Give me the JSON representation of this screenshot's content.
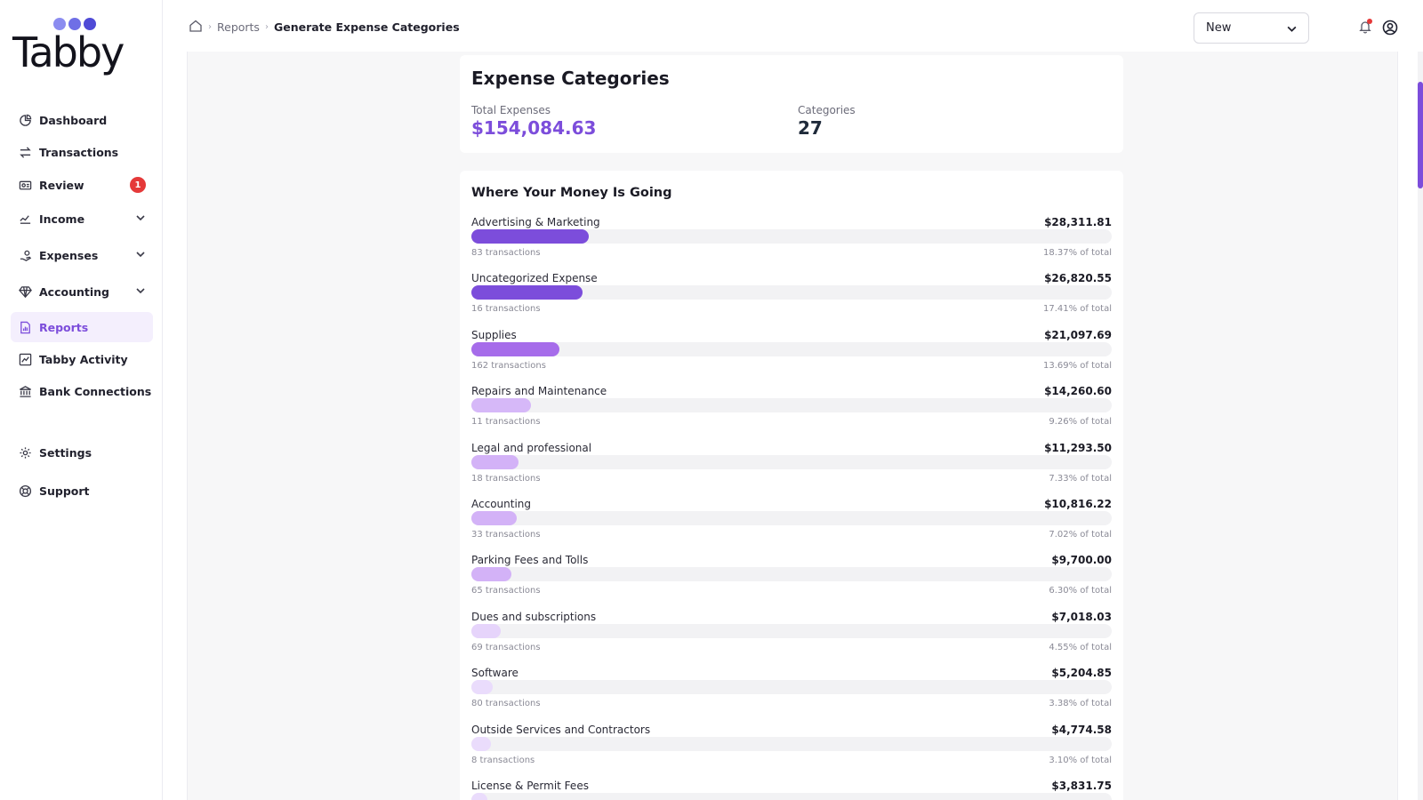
{
  "brand": {
    "name": "Tabby",
    "dot_colors": [
      "#8b8cf0",
      "#6f6fe6",
      "#4f4ad6"
    ]
  },
  "sidebar": {
    "items": [
      {
        "key": "dashboard",
        "label": "Dashboard",
        "icon": "dashboard-icon"
      },
      {
        "key": "transactions",
        "label": "Transactions",
        "icon": "transactions-icon"
      },
      {
        "key": "review",
        "label": "Review",
        "icon": "review-icon",
        "badge": "1"
      },
      {
        "key": "income",
        "label": "Income",
        "icon": "income-icon",
        "expandable": true
      },
      {
        "key": "expenses",
        "label": "Expenses",
        "icon": "expenses-icon",
        "expandable": true
      },
      {
        "key": "accounting",
        "label": "Accounting",
        "icon": "accounting-icon",
        "expandable": true
      },
      {
        "key": "reports",
        "label": "Reports",
        "icon": "reports-icon",
        "active": true
      },
      {
        "key": "tabby-activity",
        "label": "Tabby Activity",
        "icon": "activity-icon"
      },
      {
        "key": "bank-connections",
        "label": "Bank Connections",
        "icon": "bank-icon"
      },
      {
        "key": "settings",
        "label": "Settings",
        "icon": "gear-icon"
      },
      {
        "key": "support",
        "label": "Support",
        "icon": "lifebuoy-icon"
      }
    ]
  },
  "header": {
    "breadcrumb": {
      "parent": "Reports",
      "current": "Generate Expense Categories"
    },
    "new_select": {
      "value": "New"
    }
  },
  "summary": {
    "title": "Expense Categories",
    "total_label": "Total Expenses",
    "total_value": "$154,084.63",
    "categories_label": "Categories",
    "categories_value": "27"
  },
  "distribution": {
    "title": "Where Your Money Is Going",
    "categories": [
      {
        "name": "Advertising & Marketing",
        "amount": "$28,311.81",
        "transactions": "83 transactions",
        "share": "18.37% of total",
        "percent": 18.37
      },
      {
        "name": "Uncategorized Expense",
        "amount": "$26,820.55",
        "transactions": "16 transactions",
        "share": "17.41% of total",
        "percent": 17.41
      },
      {
        "name": "Supplies",
        "amount": "$21,097.69",
        "transactions": "162 transactions",
        "share": "13.69% of total",
        "percent": 13.69
      },
      {
        "name": "Repairs and Maintenance",
        "amount": "$14,260.60",
        "transactions": "11 transactions",
        "share": "9.26% of total",
        "percent": 9.26
      },
      {
        "name": "Legal and professional",
        "amount": "$11,293.50",
        "transactions": "18 transactions",
        "share": "7.33% of total",
        "percent": 7.33
      },
      {
        "name": "Accounting",
        "amount": "$10,816.22",
        "transactions": "33 transactions",
        "share": "7.02% of total",
        "percent": 7.02
      },
      {
        "name": "Parking Fees and Tolls",
        "amount": "$9,700.00",
        "transactions": "65 transactions",
        "share": "6.30% of total",
        "percent": 6.3
      },
      {
        "name": "Dues and subscriptions",
        "amount": "$7,018.03",
        "transactions": "69 transactions",
        "share": "4.55% of total",
        "percent": 4.55
      },
      {
        "name": "Software",
        "amount": "$5,204.85",
        "transactions": "80 transactions",
        "share": "3.38% of total",
        "percent": 3.38
      },
      {
        "name": "Outside Services and Contractors",
        "amount": "$4,774.58",
        "transactions": "8 transactions",
        "share": "3.10% of total",
        "percent": 3.1
      },
      {
        "name": "License & Permit Fees",
        "amount": "$3,831.75",
        "transactions": "",
        "share": "",
        "percent": 2.49
      }
    ],
    "bar_colors": [
      "#7c4ddb",
      "#7c4ddb",
      "#a66cea",
      "#d6b8f8",
      "#d3b2f7",
      "#d3b2f7",
      "#d3b2f7",
      "#e6d4fb",
      "#eadcfc",
      "#eadcfc",
      "#eadcfc"
    ]
  },
  "colors": {
    "accent": "#7c4ddb",
    "badge": "#e53939"
  }
}
